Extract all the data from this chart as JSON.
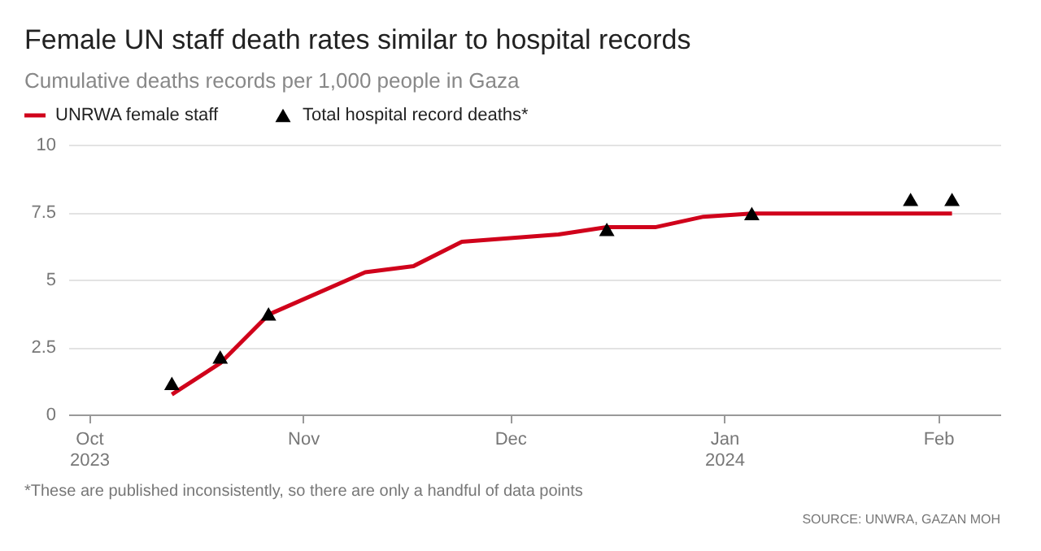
{
  "chart_data": {
    "type": "line",
    "title": "Female UN staff death rates similar to hospital records",
    "subtitle": "Cumulative deaths records per 1,000 people in Gaza",
    "series": [
      {
        "name": "UNRWA female staff",
        "marker": "none",
        "color": "#d0021b",
        "x": [
          "2023-10-13",
          "2023-10-20",
          "2023-10-27",
          "2023-11-10",
          "2023-11-17",
          "2023-11-24",
          "2023-12-08",
          "2023-12-15",
          "2023-12-22",
          "2023-12-29",
          "2024-01-05",
          "2024-02-03"
        ],
        "values": [
          0.74,
          1.9,
          3.7,
          5.27,
          5.5,
          6.4,
          6.67,
          6.94,
          6.94,
          7.33,
          7.45,
          7.45
        ]
      },
      {
        "name": "Total hospital record deaths*",
        "type": "scatter",
        "marker": "triangle",
        "color": "#000000",
        "x": [
          "2023-10-13",
          "2023-10-20",
          "2023-10-27",
          "2023-12-15",
          "2024-01-05",
          "2024-01-28",
          "2024-02-03"
        ],
        "values": [
          1.15,
          2.13,
          3.73,
          6.86,
          7.45,
          7.97,
          7.97
        ]
      }
    ],
    "xlim": [
      "2023-09-28",
      "2024-02-10"
    ],
    "xticks": [
      {
        "value": "2023-10-01",
        "label": "Oct\n2023"
      },
      {
        "value": "2023-11-01",
        "label": "Nov"
      },
      {
        "value": "2023-12-01",
        "label": "Dec"
      },
      {
        "value": "2024-01-01",
        "label": "Jan\n2024"
      },
      {
        "value": "2024-02-01",
        "label": "Feb"
      }
    ],
    "ylim": [
      0,
      10
    ],
    "yticks": [
      0,
      2.5,
      5,
      7.5,
      10
    ],
    "grid": "y",
    "legend": "top left",
    "annotations": [
      "*These are published inconsistently, so there are only a handful of data points",
      "SOURCE: UNWRA, GAZAN MOH"
    ]
  }
}
